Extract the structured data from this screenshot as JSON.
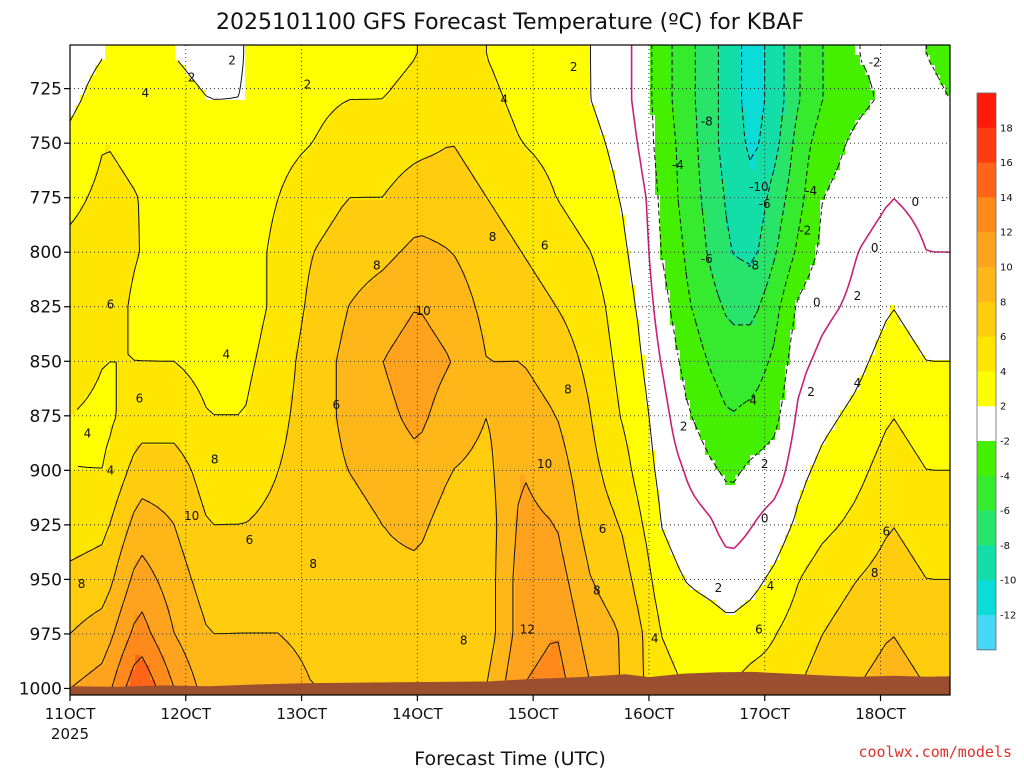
{
  "chart_data": {
    "type": "heatmap",
    "title": "2025101100 GFS Forecast Temperature (ºC) for KBAF",
    "xlabel": "Forecast Time (UTC)",
    "ylabel": "",
    "x_ticks": [
      "11OCT",
      "12OCT",
      "13OCT",
      "14OCT",
      "15OCT",
      "16OCT",
      "17OCT",
      "18OCT"
    ],
    "x_tick_year": "2025",
    "x_range_days": [
      11.0,
      18.6
    ],
    "y_ticks": [
      725,
      750,
      775,
      800,
      825,
      850,
      875,
      900,
      925,
      950,
      975,
      1000
    ],
    "y_range_hpa": [
      705,
      1003
    ],
    "colorbar_ticks": [
      18,
      16,
      14,
      12,
      10,
      8,
      6,
      4,
      2,
      -2,
      -4,
      -6,
      -8,
      -10,
      -12
    ],
    "colorbar_colors": [
      "#ff1a0a",
      "#ff3c10",
      "#ff6418",
      "#ff8a1c",
      "#ffa21e",
      "#ffb619",
      "#ffcc0e",
      "#ffe600",
      "#ffff00",
      "#ffffff",
      "#44f000",
      "#36ea2e",
      "#28e46a",
      "#14dea8",
      "#0adcd8",
      "#46d8f6"
    ],
    "ground_color": "#9b4f2f",
    "zero_contour_color": "#c8207a",
    "profile_days": [
      11.0,
      11.3,
      11.6,
      11.9,
      12.2,
      12.5,
      12.8,
      13.1,
      13.4,
      13.7,
      14.0,
      14.3,
      14.6,
      14.9,
      15.2,
      15.5,
      15.75,
      15.95,
      16.1,
      16.3,
      16.5,
      16.7,
      16.9,
      17.1,
      17.3,
      17.5,
      17.8,
      18.1,
      18.4,
      18.6
    ],
    "profile_levels_hpa": [
      710,
      730,
      750,
      775,
      800,
      825,
      850,
      875,
      900,
      925,
      950,
      975,
      1000
    ],
    "temperature_c": [
      [
        1,
        1.5,
        2.5,
        3.5,
        4.5,
        5.5,
        5,
        4,
        4,
        5,
        6.5,
        8,
        10
      ],
      [
        2,
        3,
        4,
        4.5,
        5,
        5,
        4,
        3.5,
        4,
        5.5,
        7,
        9,
        11
      ],
      [
        2,
        3,
        3.5,
        4,
        4,
        3.5,
        4,
        5,
        7,
        9,
        11,
        13,
        16
      ],
      [
        2,
        2.5,
        3,
        3,
        3,
        3,
        4,
        5,
        7,
        8,
        9,
        10,
        12
      ],
      [
        1.5,
        2,
        2.5,
        3,
        3,
        3,
        3.5,
        4,
        5,
        6,
        7,
        8,
        9
      ],
      [
        2,
        2,
        2.5,
        3,
        3,
        3,
        3.5,
        4,
        5,
        6,
        7.5,
        8,
        9
      ],
      [
        2.5,
        3,
        3.5,
        4,
        4.5,
        4.5,
        5,
        5.5,
        6,
        6.5,
        7.5,
        8,
        9
      ],
      [
        3,
        3.5,
        4,
        5,
        6,
        6.5,
        7,
        7,
        7,
        7,
        7,
        7.5,
        8
      ],
      [
        3,
        4,
        5,
        6,
        7,
        8,
        8.5,
        8.5,
        8,
        7,
        7,
        7.5,
        8
      ],
      [
        3.5,
        4,
        5,
        6,
        7.5,
        9,
        10,
        9.5,
        9,
        8,
        7.5,
        7.5,
        8
      ],
      [
        4,
        4.5,
        5.5,
        7,
        8.5,
        10,
        11,
        10.5,
        9.5,
        8.5,
        7.5,
        7.5,
        8
      ],
      [
        4.5,
        5,
        6,
        7,
        8,
        9,
        10,
        9,
        8,
        7,
        6.5,
        7,
        8
      ],
      [
        4,
        4.5,
        5,
        6,
        7,
        7.5,
        8,
        8,
        7.5,
        7,
        7,
        7,
        8
      ],
      [
        3,
        3.5,
        4,
        5,
        6,
        7,
        8,
        9,
        10,
        10.5,
        11,
        11,
        12
      ],
      [
        2.5,
        3,
        3.5,
        4,
        5,
        6,
        7,
        8,
        9,
        10,
        11,
        12,
        13
      ],
      [
        2,
        2,
        2.5,
        3,
        4,
        5,
        5.5,
        6,
        6.5,
        7,
        8,
        9,
        10
      ],
      [
        1,
        1,
        1.5,
        2,
        2.5,
        3,
        3.5,
        4,
        5,
        6,
        7,
        8,
        8
      ],
      [
        -1,
        -1,
        -0.5,
        0.5,
        1,
        1.5,
        2,
        2.5,
        3,
        4,
        5,
        6,
        6
      ],
      [
        -3,
        -3,
        -3,
        -2.5,
        -2,
        -1,
        0,
        1,
        1.5,
        2,
        3,
        4,
        5
      ],
      [
        -5,
        -5,
        -4.5,
        -4.5,
        -4,
        -3.5,
        -2.5,
        -1.5,
        0,
        1,
        2,
        3,
        4
      ],
      [
        -7,
        -7,
        -7,
        -6.5,
        -6,
        -5,
        -4,
        -3,
        -1.5,
        0.5,
        1.5,
        3,
        4
      ],
      [
        -9,
        -9,
        -9,
        -8.5,
        -8,
        -6.5,
        -5,
        -4,
        -2.5,
        -1,
        1,
        2.5,
        4
      ],
      [
        -11,
        -11,
        -10.5,
        -9.5,
        -8.5,
        -6.5,
        -5,
        -3.5,
        -1.5,
        0,
        1.5,
        3,
        5
      ],
      [
        -9,
        -9,
        -8.5,
        -7,
        -6,
        -4.5,
        -3.5,
        -2.5,
        -1,
        1,
        2.5,
        4,
        5
      ],
      [
        -6,
        -6,
        -5,
        -4.5,
        -3.5,
        -1.5,
        -0.5,
        0.5,
        1.5,
        2.5,
        4,
        5,
        6
      ],
      [
        -4,
        -4,
        -3,
        -2,
        -1.5,
        -0.5,
        0.5,
        1.5,
        2.5,
        3.5,
        5,
        6,
        7
      ],
      [
        -2,
        -2.5,
        -1.5,
        -1,
        0,
        0.5,
        1.5,
        2.5,
        3.5,
        4.5,
        6,
        7,
        8
      ],
      [
        -1.5,
        -1.5,
        -0.5,
        0,
        1,
        2,
        3,
        4,
        5,
        6,
        7,
        8,
        9
      ],
      [
        -2,
        -1.5,
        -1,
        -0.5,
        0,
        1,
        2,
        3,
        4,
        5,
        6,
        7,
        8
      ],
      [
        -2.5,
        -2,
        -1.5,
        -1,
        0,
        1,
        2,
        3,
        4,
        5,
        6,
        7,
        8
      ]
    ],
    "contour_labels": [
      {
        "day": 12.4,
        "hpa": 712,
        "text": "2"
      },
      {
        "day": 12.05,
        "hpa": 720,
        "text": "2"
      },
      {
        "day": 11.65,
        "hpa": 727,
        "text": "4"
      },
      {
        "day": 13.05,
        "hpa": 723,
        "text": "2"
      },
      {
        "day": 14.75,
        "hpa": 730,
        "text": "4"
      },
      {
        "day": 15.35,
        "hpa": 715,
        "text": "2"
      },
      {
        "day": 14.65,
        "hpa": 793,
        "text": "8"
      },
      {
        "day": 15.1,
        "hpa": 797,
        "text": "6"
      },
      {
        "day": 13.65,
        "hpa": 806,
        "text": "8"
      },
      {
        "day": 14.05,
        "hpa": 827,
        "text": "10"
      },
      {
        "day": 11.35,
        "hpa": 824,
        "text": "6"
      },
      {
        "day": 12.35,
        "hpa": 847,
        "text": "4"
      },
      {
        "day": 11.6,
        "hpa": 867,
        "text": "6"
      },
      {
        "day": 12.25,
        "hpa": 895,
        "text": "8"
      },
      {
        "day": 12.05,
        "hpa": 921,
        "text": "10"
      },
      {
        "day": 11.15,
        "hpa": 883,
        "text": "4"
      },
      {
        "day": 11.35,
        "hpa": 900,
        "text": "4"
      },
      {
        "day": 13.3,
        "hpa": 870,
        "text": "6"
      },
      {
        "day": 12.55,
        "hpa": 932,
        "text": "6"
      },
      {
        "day": 13.1,
        "hpa": 943,
        "text": "8"
      },
      {
        "day": 11.1,
        "hpa": 952,
        "text": "8"
      },
      {
        "day": 14.4,
        "hpa": 978,
        "text": "8"
      },
      {
        "day": 15.3,
        "hpa": 863,
        "text": "8"
      },
      {
        "day": 15.1,
        "hpa": 897,
        "text": "10"
      },
      {
        "day": 15.6,
        "hpa": 927,
        "text": "6"
      },
      {
        "day": 15.55,
        "hpa": 955,
        "text": "8"
      },
      {
        "day": 14.95,
        "hpa": 973,
        "text": "12"
      },
      {
        "day": 16.05,
        "hpa": 977,
        "text": "4"
      },
      {
        "day": 16.3,
        "hpa": 880,
        "text": "2"
      },
      {
        "day": 17.0,
        "hpa": 897,
        "text": "2"
      },
      {
        "day": 16.9,
        "hpa": 868,
        "text": "4"
      },
      {
        "day": 17.0,
        "hpa": 922,
        "text": "0"
      },
      {
        "day": 16.6,
        "hpa": 954,
        "text": "2"
      },
      {
        "day": 17.05,
        "hpa": 953,
        "text": "4"
      },
      {
        "day": 16.95,
        "hpa": 973,
        "text": "6"
      },
      {
        "day": 16.5,
        "hpa": 740,
        "text": "-8"
      },
      {
        "day": 16.25,
        "hpa": 760,
        "text": "-4"
      },
      {
        "day": 16.95,
        "hpa": 770,
        "text": "-10"
      },
      {
        "day": 17.0,
        "hpa": 778,
        "text": "-6"
      },
      {
        "day": 17.4,
        "hpa": 772,
        "text": "-4"
      },
      {
        "day": 16.5,
        "hpa": 803,
        "text": "-6"
      },
      {
        "day": 16.9,
        "hpa": 806,
        "text": "-8"
      },
      {
        "day": 17.35,
        "hpa": 790,
        "text": "-2"
      },
      {
        "day": 17.95,
        "hpa": 798,
        "text": "0"
      },
      {
        "day": 17.45,
        "hpa": 823,
        "text": "0"
      },
      {
        "day": 17.8,
        "hpa": 820,
        "text": "2"
      },
      {
        "day": 18.3,
        "hpa": 777,
        "text": "0"
      },
      {
        "day": 17.4,
        "hpa": 864,
        "text": "2"
      },
      {
        "day": 17.8,
        "hpa": 860,
        "text": "4"
      },
      {
        "day": 18.05,
        "hpa": 928,
        "text": "6"
      },
      {
        "day": 17.95,
        "hpa": 947,
        "text": "8"
      },
      {
        "day": 17.95,
        "hpa": 713,
        "text": "-2"
      }
    ]
  },
  "credit": "coolwx.com/models"
}
